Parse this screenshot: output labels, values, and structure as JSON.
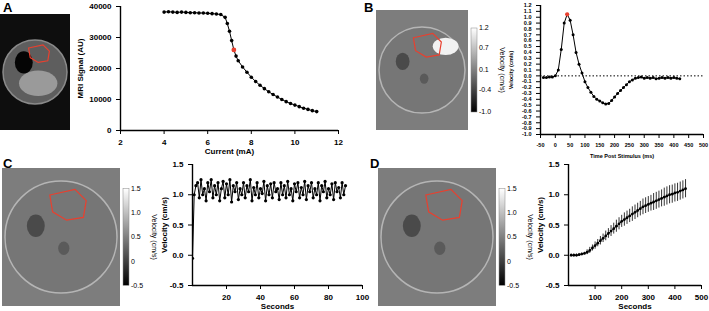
{
  "chart_data": [
    {
      "type": "line",
      "title": "A",
      "x_label": "Current (mA)",
      "y_label": "MRI Signal (AU)",
      "xlim": [
        2,
        12
      ],
      "xticks": [
        2,
        4,
        6,
        8,
        10,
        12
      ],
      "ylim": [
        0,
        40000
      ],
      "yticks": [
        0,
        10000,
        20000,
        30000,
        40000
      ],
      "grid": false,
      "x": [
        4,
        4.2,
        4.4,
        4.6,
        4.8,
        5,
        5.2,
        5.4,
        5.6,
        5.8,
        6,
        6.2,
        6.4,
        6.6,
        6.8,
        6.9,
        7,
        7.1,
        7.2,
        7.3,
        7.4,
        7.6,
        7.8,
        8,
        8.2,
        8.4,
        8.6,
        8.8,
        9,
        9.2,
        9.4,
        9.6,
        9.8,
        10,
        10.2,
        10.4,
        10.6,
        10.8,
        11
      ],
      "series": [
        {
          "color": "#000000",
          "marker": "circle",
          "line_style": "solid",
          "values": [
            38200,
            38300,
            38200,
            38100,
            38200,
            38100,
            38000,
            38000,
            37900,
            37900,
            37800,
            37700,
            37600,
            37400,
            36500,
            34500,
            32000,
            29000,
            26000,
            24000,
            22500,
            20500,
            18800,
            17200,
            15800,
            14600,
            13500,
            12500,
            11600,
            10800,
            10000,
            9300,
            8700,
            8200,
            7700,
            7200,
            6800,
            6400,
            6100
          ],
          "colors": [
            "#000000",
            "#000000",
            "#000000",
            "#000000",
            "#000000",
            "#000000",
            "#000000",
            "#000000",
            "#000000",
            "#000000",
            "#000000",
            "#000000",
            "#000000",
            "#000000",
            "#000000",
            "#000000",
            "#000000",
            "#000000",
            "#e8402f",
            "#000000",
            "#000000",
            "#000000",
            "#000000",
            "#000000",
            "#000000",
            "#000000",
            "#000000",
            "#000000",
            "#000000",
            "#000000",
            "#000000",
            "#000000",
            "#000000",
            "#000000",
            "#000000",
            "#000000",
            "#000000",
            "#000000",
            "#000000"
          ]
        }
      ]
    },
    {
      "type": "line",
      "title": "B",
      "x_label": "Time Post Stimulus (ms)",
      "y_label": "Velocity (cm/s)",
      "xlim": [
        -50,
        500
      ],
      "xticks": [
        -50,
        0,
        50,
        100,
        150,
        200,
        250,
        300,
        350,
        400,
        450,
        500
      ],
      "ylim": [
        -1,
        1.2
      ],
      "yticks": [
        {
          "value": -1,
          "label": "-1.0"
        },
        -0.9,
        -0.8,
        -0.7,
        -0.6,
        -0.5,
        -0.4,
        -0.3,
        -0.2,
        -0.1,
        {
          "value": 0,
          "label": "0.0"
        },
        0.1,
        0.2,
        0.3,
        0.4,
        0.5,
        0.6,
        0.7,
        0.8,
        0.9,
        {
          "value": 1,
          "label": "1.0"
        },
        1.1,
        1.2
      ],
      "grid": false,
      "reference_line": {
        "y": 0,
        "line_style": "dotted"
      },
      "colorbar": {
        "label": "Velocity (cm/s)",
        "range": [
          -1,
          1.2
        ],
        "ticks": [
          1.2,
          0.7,
          0.1,
          -0.4,
          {
            "value": -1,
            "label": "-1.0"
          }
        ]
      },
      "x": [
        -40,
        -30,
        -20,
        -10,
        0,
        10,
        20,
        30,
        40,
        50,
        60,
        70,
        80,
        90,
        100,
        110,
        120,
        130,
        140,
        150,
        160,
        170,
        180,
        190,
        200,
        210,
        220,
        230,
        240,
        250,
        260,
        270,
        280,
        290,
        300,
        310,
        320,
        330,
        340,
        350,
        360,
        370,
        380,
        390,
        400,
        410,
        420
      ],
      "series": [
        {
          "color": "#000000",
          "marker": "circle",
          "line_style": "solid",
          "values": [
            -0.03,
            -0.03,
            -0.02,
            -0.02,
            0,
            0.1,
            0.45,
            0.9,
            1.05,
            0.95,
            0.7,
            0.4,
            0.2,
            0.05,
            -0.1,
            -0.2,
            -0.28,
            -0.35,
            -0.4,
            -0.43,
            -0.46,
            -0.48,
            -0.47,
            -0.42,
            -0.36,
            -0.3,
            -0.25,
            -0.2,
            -0.15,
            -0.1,
            -0.07,
            -0.04,
            -0.03,
            -0.02,
            -0.04,
            -0.03,
            -0.04,
            -0.03,
            -0.05,
            -0.04,
            -0.03,
            -0.04,
            -0.03,
            -0.04,
            -0.03,
            -0.04,
            -0.05
          ],
          "colors": [
            "#000000",
            "#000000",
            "#000000",
            "#000000",
            "#000000",
            "#000000",
            "#000000",
            "#000000",
            "#e8402f",
            "#000000",
            "#000000",
            "#000000",
            "#000000",
            "#000000",
            "#000000",
            "#000000",
            "#000000",
            "#000000",
            "#000000",
            "#000000",
            "#000000",
            "#000000",
            "#000000",
            "#000000",
            "#000000",
            "#000000",
            "#000000",
            "#000000",
            "#000000",
            "#000000",
            "#000000",
            "#000000",
            "#000000",
            "#000000",
            "#000000",
            "#000000",
            "#000000",
            "#000000",
            "#000000",
            "#000000",
            "#000000",
            "#000000",
            "#000000",
            "#000000",
            "#000000",
            "#000000",
            "#000000"
          ]
        }
      ]
    },
    {
      "type": "line",
      "title": "C",
      "x_label": "Seconds",
      "y_label": "Velocity (cm/s)",
      "xlim": [
        0,
        100
      ],
      "xticks": [
        20,
        40,
        60,
        80,
        100
      ],
      "ylim": [
        -0.5,
        1.5
      ],
      "yticks": [
        -0.5,
        {
          "value": 0,
          "label": "0.0"
        },
        0.5,
        {
          "value": 1,
          "label": "1.0"
        },
        1.5
      ],
      "grid": false,
      "colorbar": {
        "label": "Velocity (cm/s)",
        "range": [
          -0.5,
          1.5
        ],
        "ticks": [
          1.5,
          {
            "value": 1,
            "label": "1.0"
          },
          0.5,
          0,
          -0.5
        ]
      },
      "x": [
        0,
        1,
        2,
        3,
        4,
        5,
        6,
        7,
        8,
        9,
        10,
        11,
        12,
        13,
        14,
        15,
        16,
        17,
        18,
        19,
        20,
        21,
        22,
        23,
        24,
        25,
        26,
        27,
        28,
        29,
        30,
        31,
        32,
        33,
        34,
        35,
        36,
        37,
        38,
        39,
        40,
        41,
        42,
        43,
        44,
        45,
        46,
        47,
        48,
        49,
        50,
        51,
        52,
        53,
        54,
        55,
        56,
        57,
        58,
        59,
        60,
        61,
        62,
        63,
        64,
        65,
        66,
        67,
        68,
        69,
        70,
        71,
        72,
        73,
        74,
        75,
        76,
        77,
        78,
        79,
        80,
        81,
        82,
        83,
        84,
        85,
        86,
        87,
        88,
        89,
        90
      ],
      "series": [
        {
          "color": "#000000",
          "marker": "circle",
          "line_style": "solid",
          "values": [
            -0.05,
            1.0,
            1.15,
            1.2,
            0.95,
            1.25,
            1.0,
            1.1,
            0.9,
            1.2,
            1.05,
            1.25,
            0.95,
            1.15,
            1.0,
            1.2,
            0.9,
            1.1,
            1.22,
            0.95,
            1.18,
            1.0,
            1.25,
            0.88,
            1.15,
            1.05,
            1.2,
            0.92,
            1.1,
            1.0,
            1.2,
            0.95,
            1.15,
            1.05,
            1.25,
            0.9,
            1.12,
            1.0,
            1.2,
            0.95,
            1.1,
            1.02,
            1.22,
            0.9,
            1.15,
            1.0,
            1.18,
            0.95,
            1.2,
            1.05,
            1.1,
            0.92,
            1.2,
            1.0,
            1.15,
            0.95,
            1.22,
            1.0,
            1.1,
            0.9,
            1.18,
            1.05,
            1.2,
            0.95,
            1.12,
            1.0,
            1.22,
            0.92,
            1.15,
            1.05,
            1.2,
            0.95,
            1.1,
            1.0,
            1.2,
            0.9,
            1.15,
            1.05,
            1.22,
            0.95,
            1.1,
            1.0,
            1.18,
            0.92,
            1.2,
            1.05,
            1.12,
            0.95,
            1.2,
            1.0,
            1.15
          ]
        }
      ]
    },
    {
      "type": "line",
      "title": "D",
      "x_label": "Seconds",
      "y_label": "Velocity (cm/s)",
      "xlim": [
        0,
        500
      ],
      "xticks": [
        100,
        200,
        300,
        400,
        500
      ],
      "ylim": [
        -0.5,
        1.5
      ],
      "yticks": [
        -0.5,
        {
          "value": 0,
          "label": "0.0"
        },
        0.5,
        {
          "value": 1,
          "label": "1.0"
        },
        1.5
      ],
      "grid": false,
      "colorbar": {
        "label": "Velocity (cm/s)",
        "range": [
          -0.5,
          1.5
        ],
        "ticks": [
          1.5,
          {
            "value": 1,
            "label": "1.0"
          },
          0.5,
          0,
          -0.5
        ]
      },
      "x": [
        10,
        20,
        30,
        40,
        50,
        60,
        70,
        80,
        90,
        100,
        110,
        120,
        130,
        140,
        150,
        160,
        170,
        180,
        190,
        200,
        210,
        220,
        230,
        240,
        250,
        260,
        270,
        280,
        290,
        300,
        310,
        320,
        330,
        340,
        350,
        360,
        370,
        380,
        390,
        400,
        410,
        420,
        430,
        440
      ],
      "series": [
        {
          "color": "#000000",
          "marker": "circle",
          "line_style": "solid",
          "values": [
            0,
            0,
            0,
            0.01,
            0.02,
            0.03,
            0.05,
            0.08,
            0.12,
            0.16,
            0.2,
            0.24,
            0.28,
            0.32,
            0.36,
            0.4,
            0.44,
            0.48,
            0.52,
            0.56,
            0.59,
            0.62,
            0.65,
            0.68,
            0.71,
            0.74,
            0.77,
            0.8,
            0.82,
            0.84,
            0.86,
            0.88,
            0.9,
            0.92,
            0.94,
            0.96,
            0.98,
            1.0,
            1.01,
            1.03,
            1.04,
            1.06,
            1.08,
            1.1
          ],
          "errors": [
            0.02,
            0.02,
            0.02,
            0.02,
            0.02,
            0.02,
            0.04,
            0.05,
            0.05,
            0.06,
            0.06,
            0.07,
            0.07,
            0.08,
            0.08,
            0.09,
            0.09,
            0.1,
            0.1,
            0.1,
            0.11,
            0.11,
            0.11,
            0.12,
            0.12,
            0.12,
            0.12,
            0.13,
            0.13,
            0.13,
            0.13,
            0.14,
            0.14,
            0.14,
            0.14,
            0.15,
            0.15,
            0.15,
            0.15,
            0.15,
            0.15,
            0.15,
            0.15,
            0.15
          ]
        }
      ]
    }
  ]
}
